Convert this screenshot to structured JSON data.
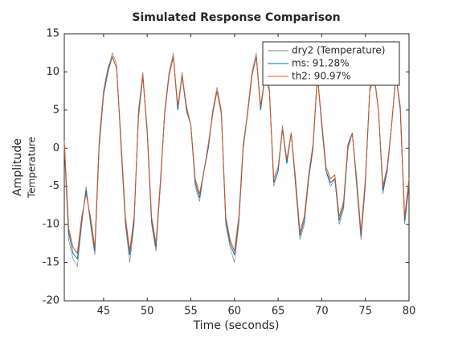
{
  "chart_data": {
    "type": "line",
    "title": "Simulated Response Comparison",
    "xlabel": "Time (seconds)",
    "ylabel": "Amplitude",
    "ylabel2": "Temperature",
    "x": [
      40.5,
      41,
      41.5,
      42,
      42.5,
      43,
      43.5,
      44,
      44.5,
      45,
      45.5,
      46,
      46.5,
      47,
      47.5,
      48,
      48.5,
      49,
      49.5,
      50,
      50.5,
      51,
      51.5,
      52,
      52.5,
      53,
      53.5,
      54,
      54.5,
      55,
      55.5,
      56,
      56.5,
      57,
      57.5,
      58,
      58.5,
      59,
      59.5,
      60,
      60.5,
      61,
      61.5,
      62,
      62.5,
      63,
      63.5,
      64,
      64.5,
      65,
      65.5,
      66,
      66.5,
      67,
      67.5,
      68,
      68.5,
      69,
      69.5,
      70,
      70.5,
      71,
      71.5,
      72,
      72.5,
      73,
      73.5,
      74,
      74.5,
      75,
      75.5,
      76,
      76.5,
      77,
      77.5,
      78,
      78.5,
      79,
      79.5,
      80
    ],
    "series": [
      {
        "name": "dry2 (Temperature)",
        "color": "#808080",
        "values": [
          0,
          -12,
          -14.5,
          -15.5,
          -10,
          -5,
          -10,
          -14,
          0,
          7,
          10,
          12.5,
          11,
          0,
          -10,
          -15,
          -10,
          5,
          10,
          2,
          -10,
          -13.5,
          -5,
          5,
          10,
          12.5,
          5,
          10,
          5,
          3,
          -5,
          -7,
          -3,
          0,
          5,
          8,
          5,
          -10,
          -13,
          -15,
          -10,
          0,
          5,
          10,
          12.5,
          5,
          10,
          8,
          -5,
          -3,
          3,
          -2,
          2,
          -5,
          -12,
          -10,
          -4,
          0,
          10,
          3,
          -3,
          -5,
          -4,
          -10,
          -8,
          0,
          2,
          -5,
          -12,
          -5,
          8,
          10,
          5,
          -6,
          -3,
          3,
          10,
          5,
          -10,
          -5
        ]
      },
      {
        "name": "ms: 91.28%",
        "color": "#0072BD",
        "values": [
          0.5,
          -11,
          -13.8,
          -14.5,
          -9.5,
          -5.5,
          -9.5,
          -13.5,
          0.5,
          7,
          10,
          12,
          10.5,
          0.5,
          -9.5,
          -14,
          -9.5,
          4.5,
          9.5,
          2,
          -9.5,
          -13,
          -5,
          4.5,
          9.5,
          12,
          5,
          9.5,
          5,
          3,
          -4.5,
          -6.5,
          -3,
          0,
          4.5,
          7.5,
          4.5,
          -9.5,
          -12.5,
          -14,
          -9.5,
          0,
          4.5,
          9.5,
          12,
          5,
          9.5,
          7.5,
          -4.5,
          -3,
          2.5,
          -2,
          2,
          -4.5,
          -11.5,
          -9.5,
          -4,
          0,
          9.5,
          3,
          -3,
          -4.5,
          -4,
          -9.5,
          -7.5,
          0,
          2,
          -4.5,
          -11.5,
          -4.5,
          7.5,
          9.5,
          5,
          -5.5,
          -3,
          3,
          9.5,
          5,
          -9.5,
          -4.5
        ]
      },
      {
        "name": "th2: 90.97%",
        "color": "#D95319",
        "values": [
          1,
          -10.5,
          -13,
          -13.8,
          -9,
          -6,
          -9,
          -13,
          1,
          7.5,
          10.5,
          12,
          10.5,
          1,
          -9,
          -13.5,
          -9,
          4,
          9.5,
          2.5,
          -9,
          -12.5,
          -4.5,
          4.5,
          9.5,
          12,
          5.5,
          9.5,
          5.5,
          3,
          -4,
          -6,
          -3,
          0.5,
          4.5,
          7.5,
          4.5,
          -9,
          -12,
          -13.5,
          -9,
          0.5,
          4.5,
          9.5,
          12,
          5.5,
          9.5,
          7.5,
          -4,
          -2.5,
          2.5,
          -1.5,
          2,
          -4,
          -11,
          -9,
          -3.5,
          0.5,
          9.5,
          3.5,
          -2.5,
          -4,
          -3.5,
          -9,
          -7,
          0.5,
          2,
          -4,
          -11,
          -4,
          7.5,
          9.5,
          5,
          -5,
          -2.5,
          3,
          9.5,
          5.5,
          -9,
          -4
        ]
      }
    ],
    "xlim": [
      40.5,
      80
    ],
    "ylim": [
      -20,
      15
    ],
    "xticks": [
      45,
      50,
      55,
      60,
      65,
      70,
      75,
      80
    ],
    "yticks": [
      -20,
      -15,
      -10,
      -5,
      0,
      5,
      10,
      15
    ],
    "legend": "upper right"
  }
}
